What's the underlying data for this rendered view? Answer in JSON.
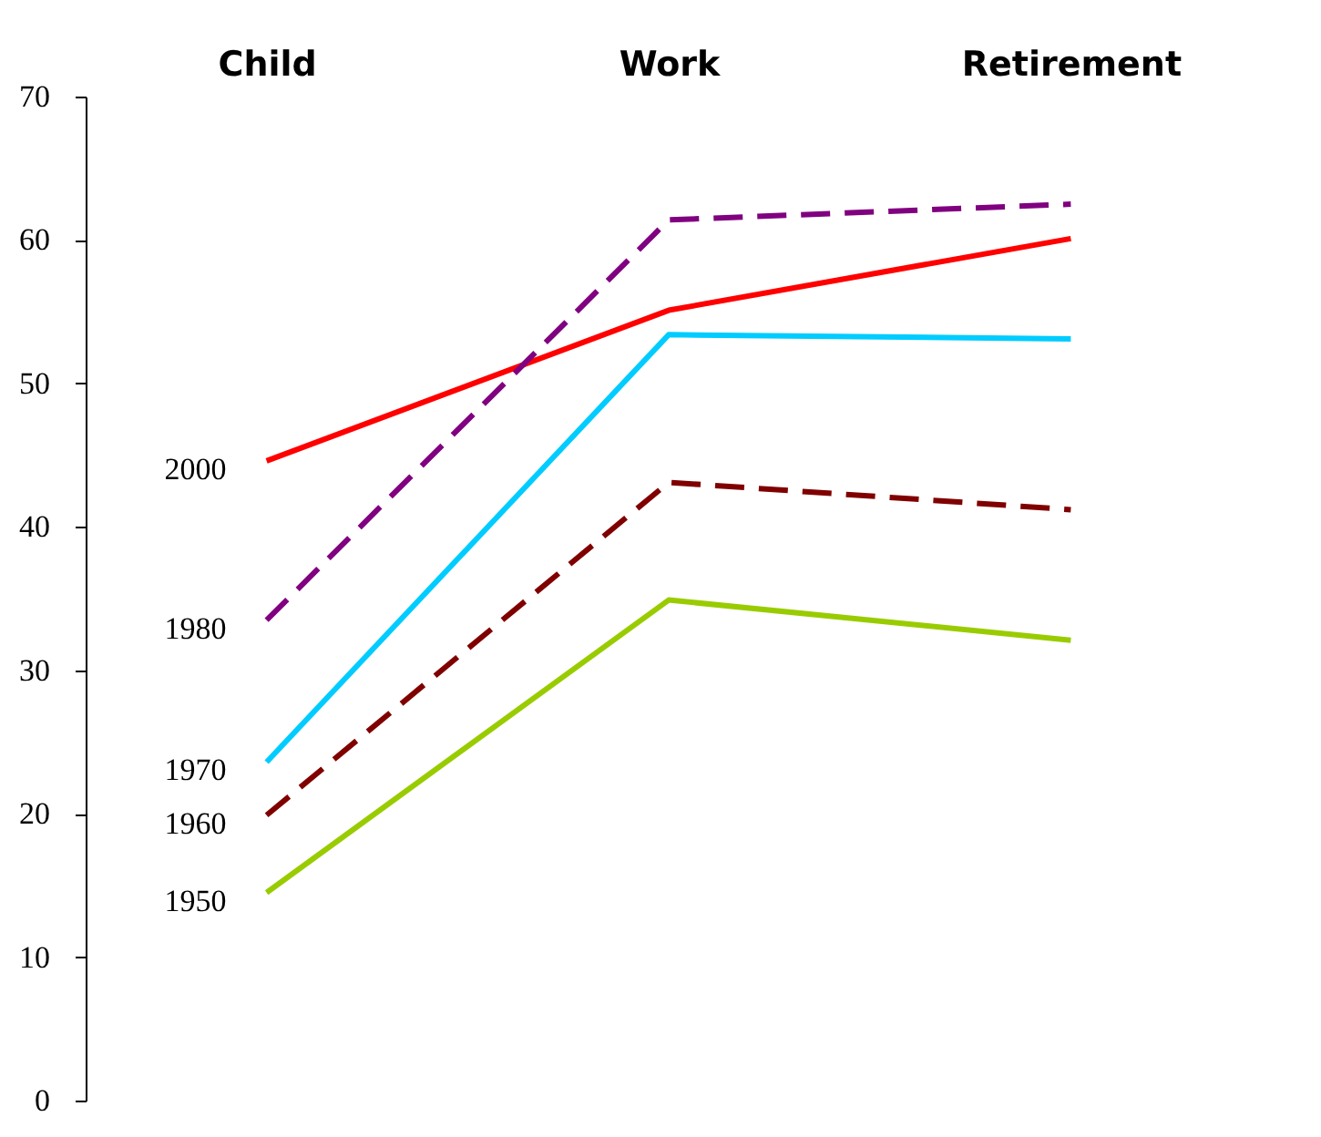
{
  "chart_data": {
    "type": "line",
    "categories": [
      "Child",
      "Work",
      "Retirement"
    ],
    "series": [
      {
        "name": "2000",
        "color": "#ff0000",
        "values": [
          44.6,
          55.1,
          60.1
        ],
        "line_style": "solid"
      },
      {
        "name": "1980",
        "color": "#800080",
        "values": [
          33.5,
          61.4,
          62.5
        ],
        "line_style": "dashed"
      },
      {
        "name": "1970",
        "color": "#00ccff",
        "values": [
          23.6,
          53.4,
          53.1
        ],
        "line_style": "solid"
      },
      {
        "name": "1960",
        "color": "#800000",
        "values": [
          19.9,
          43.1,
          41.2
        ],
        "line_style": "dashed"
      },
      {
        "name": "1950",
        "color": "#99cc00",
        "values": [
          14.5,
          34.9,
          32.1
        ],
        "line_style": "solid"
      }
    ],
    "ylim": [
      0,
      70
    ],
    "yticks": [
      0,
      10,
      20,
      30,
      40,
      50,
      60,
      70
    ],
    "grid": false,
    "legend": false,
    "marker": "none"
  }
}
